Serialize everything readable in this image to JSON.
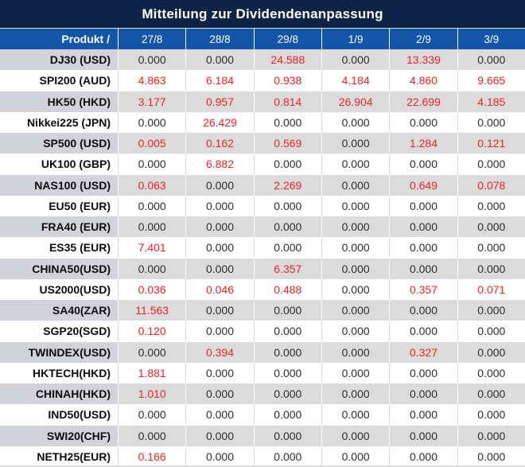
{
  "title": "Mitteilung zur Dividendenanpassung",
  "colors": {
    "title_bg": "#0d2446",
    "header_bg": "#1355a6",
    "stripe_bg": "#dbdbdb",
    "stripe_product_bg": "#d2d3d8",
    "red_value": "#ee2424",
    "black_value": "#2d2d2d"
  },
  "table": {
    "product_header": "Produkt /",
    "date_headers": [
      "27/8",
      "28/8",
      "29/8",
      "1/9",
      "2/9",
      "3/9"
    ],
    "rows": [
      {
        "product": "DJ30 (USD)",
        "values": [
          "0.000",
          "0.000",
          "24.588",
          "0.000",
          "13.339",
          "0.000"
        ],
        "red": [
          false,
          false,
          true,
          false,
          true,
          false
        ]
      },
      {
        "product": "SPI200 (AUD)",
        "values": [
          "4.863",
          "6.184",
          "0.938",
          "4.184",
          "4.860",
          "9.665"
        ],
        "red": [
          true,
          true,
          true,
          true,
          true,
          true
        ]
      },
      {
        "product": "HK50 (HKD)",
        "values": [
          "3.177",
          "0.957",
          "0.814",
          "26.904",
          "22.699",
          "4.185"
        ],
        "red": [
          true,
          true,
          true,
          true,
          true,
          true
        ]
      },
      {
        "product": "Nikkei225 (JPN)",
        "values": [
          "0.000",
          "26.429",
          "0.000",
          "0.000",
          "0.000",
          "0.000"
        ],
        "red": [
          false,
          true,
          false,
          false,
          false,
          false
        ]
      },
      {
        "product": "SP500 (USD)",
        "values": [
          "0.005",
          "0.162",
          "0.569",
          "0.000",
          "1.284",
          "0.121"
        ],
        "red": [
          true,
          true,
          true,
          false,
          true,
          true
        ]
      },
      {
        "product": "UK100 (GBP)",
        "values": [
          "0.000",
          "6.882",
          "0.000",
          "0.000",
          "0.000",
          "0.000"
        ],
        "red": [
          false,
          true,
          false,
          false,
          false,
          false
        ]
      },
      {
        "product": "NAS100 (USD)",
        "values": [
          "0.063",
          "0.000",
          "2.269",
          "0.000",
          "0.649",
          "0.078"
        ],
        "red": [
          true,
          false,
          true,
          false,
          true,
          true
        ]
      },
      {
        "product": "EU50 (EUR)",
        "values": [
          "0.000",
          "0.000",
          "0.000",
          "0.000",
          "0.000",
          "0.000"
        ],
        "red": [
          false,
          false,
          false,
          false,
          false,
          false
        ]
      },
      {
        "product": "FRA40 (EUR)",
        "values": [
          "0.000",
          "0.000",
          "0.000",
          "0.000",
          "0.000",
          "0.000"
        ],
        "red": [
          false,
          false,
          false,
          false,
          false,
          false
        ]
      },
      {
        "product": "ES35 (EUR)",
        "values": [
          "7.401",
          "0.000",
          "0.000",
          "0.000",
          "0.000",
          "0.000"
        ],
        "red": [
          true,
          false,
          false,
          false,
          false,
          false
        ]
      },
      {
        "product": "CHINA50(USD)",
        "values": [
          "0.000",
          "0.000",
          "6.357",
          "0.000",
          "0.000",
          "0.000"
        ],
        "red": [
          false,
          false,
          true,
          false,
          false,
          false
        ]
      },
      {
        "product": "US2000(USD)",
        "values": [
          "0.036",
          "0.046",
          "0.488",
          "0.000",
          "0.357",
          "0.071"
        ],
        "red": [
          true,
          true,
          true,
          false,
          true,
          true
        ]
      },
      {
        "product": "SA40(ZAR)",
        "values": [
          "11.563",
          "0.000",
          "0.000",
          "0.000",
          "0.000",
          "0.000"
        ],
        "red": [
          true,
          false,
          false,
          false,
          false,
          false
        ]
      },
      {
        "product": "SGP20(SGD)",
        "values": [
          "0.120",
          "0.000",
          "0.000",
          "0.000",
          "0.000",
          "0.000"
        ],
        "red": [
          true,
          false,
          false,
          false,
          false,
          false
        ]
      },
      {
        "product": "TWINDEX(USD)",
        "values": [
          "0.000",
          "0.394",
          "0.000",
          "0.000",
          "0.327",
          "0.000"
        ],
        "red": [
          false,
          true,
          false,
          false,
          true,
          false
        ]
      },
      {
        "product": "HKTECH(HKD)",
        "values": [
          "1.881",
          "0.000",
          "0.000",
          "0.000",
          "0.000",
          "0.000"
        ],
        "red": [
          true,
          false,
          false,
          false,
          false,
          false
        ]
      },
      {
        "product": "CHINAH(HKD)",
        "values": [
          "1.010",
          "0.000",
          "0.000",
          "0.000",
          "0.000",
          "0.000"
        ],
        "red": [
          true,
          false,
          false,
          false,
          false,
          false
        ]
      },
      {
        "product": "IND50(USD)",
        "values": [
          "0.000",
          "0.000",
          "0.000",
          "0.000",
          "0.000",
          "0.000"
        ],
        "red": [
          false,
          false,
          false,
          false,
          false,
          false
        ]
      },
      {
        "product": "SWI20(CHF)",
        "values": [
          "0.000",
          "0.000",
          "0.000",
          "0.000",
          "0.000",
          "0.000"
        ],
        "red": [
          false,
          false,
          false,
          false,
          false,
          false
        ]
      },
      {
        "product": "NETH25(EUR)",
        "values": [
          "0.166",
          "0.000",
          "0.000",
          "0.000",
          "0.000",
          "0.000"
        ],
        "red": [
          true,
          false,
          false,
          false,
          false,
          false
        ]
      }
    ]
  }
}
